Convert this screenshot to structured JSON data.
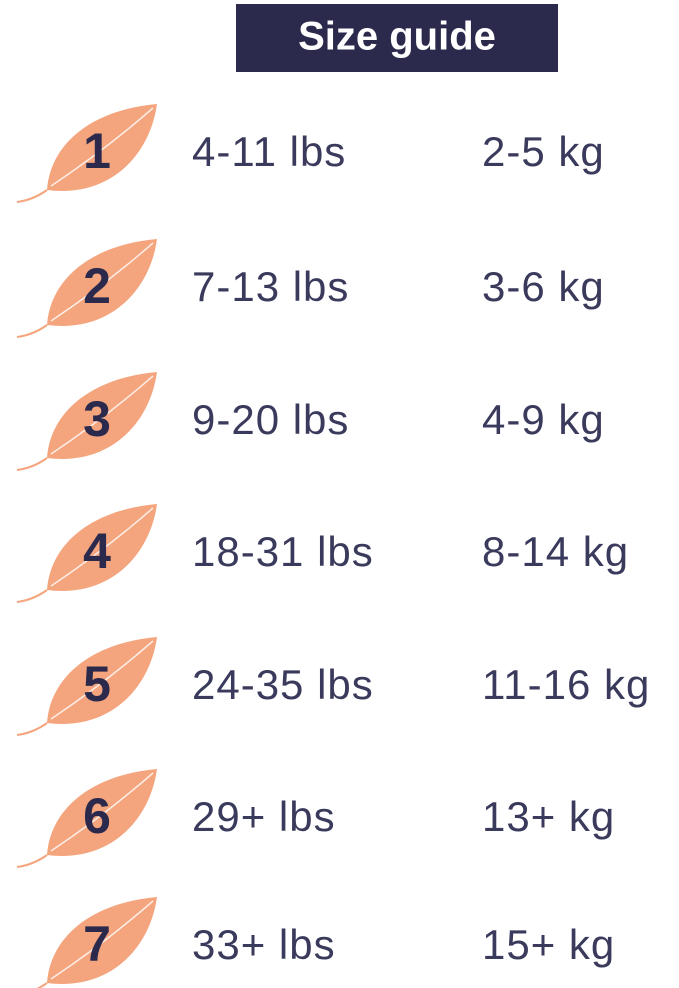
{
  "title": "Size guide",
  "sizes": [
    {
      "size": "1",
      "lbs": "4-11 lbs",
      "kg": "2-5 kg"
    },
    {
      "size": "2",
      "lbs": "7-13 lbs",
      "kg": "3-6 kg"
    },
    {
      "size": "3",
      "lbs": "9-20 lbs",
      "kg": "4-9 kg"
    },
    {
      "size": "4",
      "lbs": "18-31 lbs",
      "kg": "8-14 kg"
    },
    {
      "size": "5",
      "lbs": "24-35 lbs",
      "kg": "11-16 kg"
    },
    {
      "size": "6",
      "lbs": "29+ lbs",
      "kg": "13+ kg"
    },
    {
      "size": "7",
      "lbs": "33+ lbs",
      "kg": "15+ kg"
    }
  ]
}
